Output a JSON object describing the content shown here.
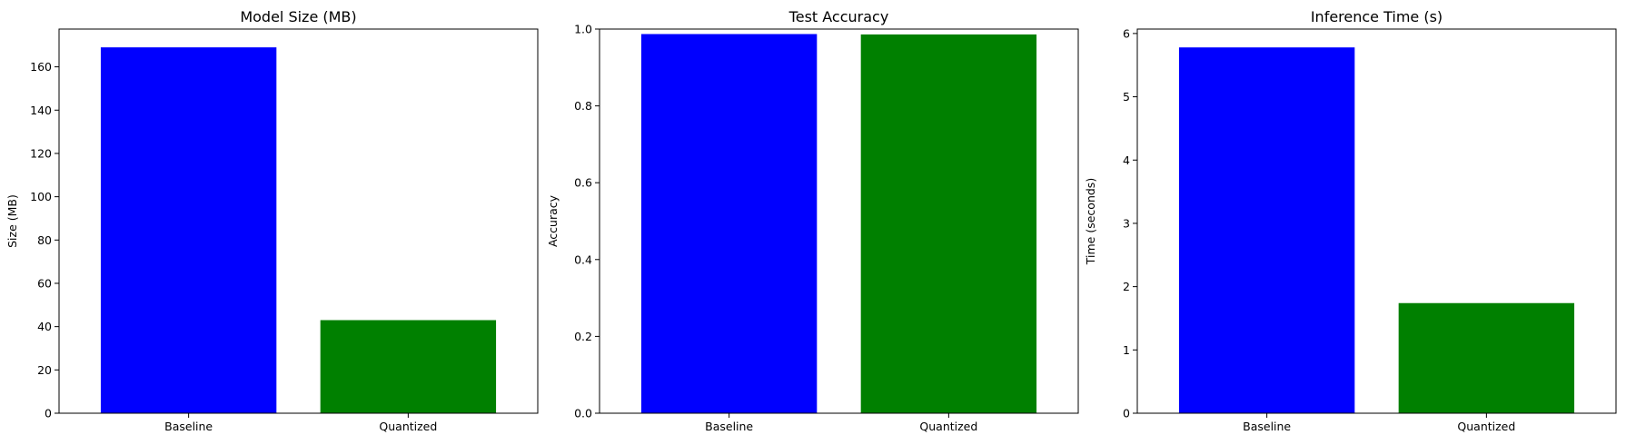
{
  "chart_data": [
    {
      "type": "bar",
      "title": "Model Size (MB)",
      "xlabel": "",
      "ylabel": "Size (MB)",
      "categories": [
        "Baseline",
        "Quantized"
      ],
      "values": [
        169,
        43
      ],
      "colors": [
        "#0000ff",
        "#008000"
      ],
      "ylim": [
        0,
        177.45
      ],
      "yticks": [
        0,
        20,
        40,
        60,
        80,
        100,
        120,
        140,
        160
      ],
      "ytick_labels": [
        "0",
        "20",
        "40",
        "60",
        "80",
        "100",
        "120",
        "140",
        "160"
      ],
      "grid": false,
      "legend": "none"
    },
    {
      "type": "bar",
      "title": "Test Accuracy",
      "xlabel": "",
      "ylabel": "Accuracy",
      "categories": [
        "Baseline",
        "Quantized"
      ],
      "values": [
        0.987,
        0.986
      ],
      "colors": [
        "#0000ff",
        "#008000"
      ],
      "ylim": [
        0,
        1.0
      ],
      "yticks": [
        0,
        0.2,
        0.4,
        0.6,
        0.8,
        1.0
      ],
      "ytick_labels": [
        "0.0",
        "0.2",
        "0.4",
        "0.6",
        "0.8",
        "1.0"
      ],
      "grid": false,
      "legend": "none"
    },
    {
      "type": "bar",
      "title": "Inference Time (s)",
      "xlabel": "",
      "ylabel": "Time (seconds)",
      "categories": [
        "Baseline",
        "Quantized"
      ],
      "values": [
        5.78,
        1.74
      ],
      "colors": [
        "#0000ff",
        "#008000"
      ],
      "ylim": [
        0,
        6.07
      ],
      "yticks": [
        0,
        1,
        2,
        3,
        4,
        5,
        6
      ],
      "ytick_labels": [
        "0",
        "1",
        "2",
        "3",
        "4",
        "5",
        "6"
      ],
      "grid": false,
      "legend": "none"
    }
  ]
}
